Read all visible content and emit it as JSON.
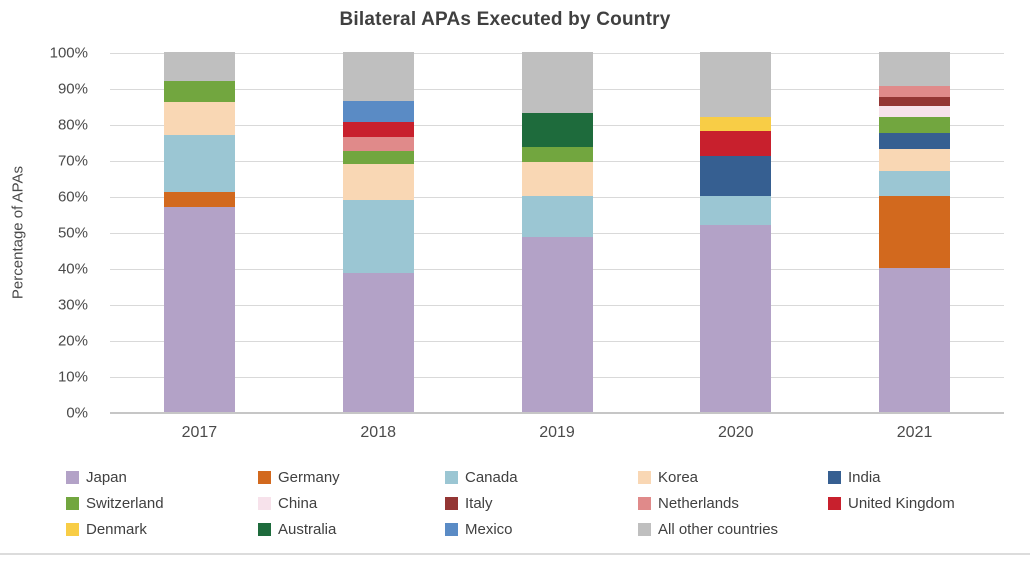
{
  "chart_data": {
    "type": "bar",
    "variant": "stacked-100-percent",
    "title": "Bilateral APAs Executed by Country",
    "ylabel": "Percentage of APAs",
    "xlabel": "",
    "categories": [
      "2017",
      "2018",
      "2019",
      "2020",
      "2021"
    ],
    "ylim": [
      0,
      100
    ],
    "yticks": [
      "0%",
      "10%",
      "20%",
      "30%",
      "40%",
      "50%",
      "60%",
      "70%",
      "80%",
      "90%",
      "100%"
    ],
    "grid": "horizontal",
    "legend_position": "bottom",
    "series": [
      {
        "name": "Japan",
        "color": "#B3A2C7",
        "values": [
          57,
          38.5,
          48.5,
          52,
          40
        ]
      },
      {
        "name": "Germany",
        "color": "#D2691E",
        "values": [
          4,
          0,
          0,
          0,
          20
        ]
      },
      {
        "name": "Canada",
        "color": "#9BC6D3",
        "values": [
          16,
          20.5,
          11.5,
          8,
          7
        ]
      },
      {
        "name": "Korea",
        "color": "#F9D7B4",
        "values": [
          9,
          10,
          9.5,
          0,
          6
        ]
      },
      {
        "name": "India",
        "color": "#365F91",
        "values": [
          0,
          0,
          0,
          11,
          4.5
        ]
      },
      {
        "name": "Switzerland",
        "color": "#72A63F",
        "values": [
          6,
          3.5,
          4,
          0,
          4.5
        ]
      },
      {
        "name": "China",
        "color": "#F7E2EB",
        "values": [
          0,
          0,
          0,
          0,
          3
        ]
      },
      {
        "name": "Italy",
        "color": "#943634",
        "values": [
          0,
          0,
          0,
          0,
          2.5
        ]
      },
      {
        "name": "Netherlands",
        "color": "#E08A8A",
        "values": [
          0,
          4,
          0,
          0,
          3
        ]
      },
      {
        "name": "United Kingdom",
        "color": "#C8202D",
        "values": [
          0,
          4,
          0,
          7,
          0
        ]
      },
      {
        "name": "Denmark",
        "color": "#F8CD46",
        "values": [
          0,
          0,
          0,
          4,
          0
        ]
      },
      {
        "name": "Australia",
        "color": "#1E6B3C",
        "values": [
          0,
          0,
          9.5,
          0,
          0
        ]
      },
      {
        "name": "Mexico",
        "color": "#5A8BC5",
        "values": [
          0,
          6,
          0,
          0,
          0
        ]
      },
      {
        "name": "All other countries",
        "color": "#BFBFBF",
        "values": [
          8,
          13.5,
          17,
          18,
          9.5
        ]
      }
    ]
  }
}
